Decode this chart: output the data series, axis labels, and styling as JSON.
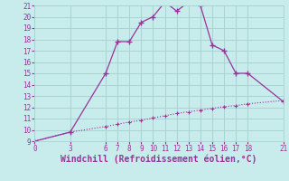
{
  "xlabel": "Windchill (Refroidissement éolien,°C)",
  "bg_color": "#c8ecec",
  "grid_color": "#aad4d4",
  "line_color": "#993399",
  "curve1_x": [
    0,
    3,
    6,
    7,
    8,
    9,
    10,
    11,
    12,
    13,
    14,
    15,
    16,
    17,
    18,
    21
  ],
  "curve1_y": [
    9,
    9.8,
    15,
    17.8,
    17.8,
    19.5,
    20,
    21.3,
    20.5,
    21.3,
    21,
    17.5,
    17,
    15,
    15,
    12.5
  ],
  "curve2_x": [
    0,
    3,
    6,
    7,
    8,
    9,
    10,
    11,
    12,
    13,
    14,
    15,
    16,
    17,
    18,
    21
  ],
  "curve2_y": [
    9,
    9.8,
    10.3,
    10.5,
    10.7,
    10.85,
    11.05,
    11.25,
    11.45,
    11.6,
    11.75,
    11.9,
    12.05,
    12.15,
    12.3,
    12.6
  ],
  "xlim": [
    0,
    21
  ],
  "ylim": [
    9,
    21
  ],
  "xticks": [
    0,
    3,
    6,
    7,
    8,
    9,
    10,
    11,
    12,
    13,
    14,
    15,
    16,
    17,
    18,
    21
  ],
  "yticks": [
    9,
    10,
    11,
    12,
    13,
    14,
    15,
    16,
    17,
    18,
    19,
    20,
    21
  ],
  "tick_fontsize": 5.5,
  "xlabel_fontsize": 7.0
}
